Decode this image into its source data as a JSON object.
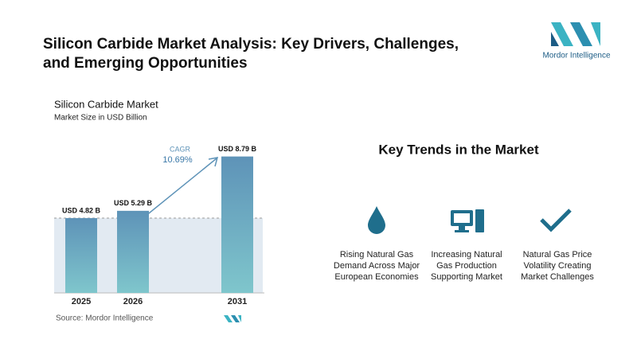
{
  "header": {
    "title_line1": "Silicon Carbide Market Analysis: Key Drivers, Challenges,",
    "title_line2": "and Emerging Opportunities"
  },
  "logo": {
    "text": "Mordor Intelligence"
  },
  "chart_data": {
    "type": "bar",
    "title": "Silicon Carbide Market",
    "subtitle": "Market Size in USD Billion",
    "categories": [
      "2025",
      "2026",
      "2031"
    ],
    "values": [
      4.82,
      5.29,
      8.79
    ],
    "value_labels": [
      "USD 4.82 B",
      "USD 5.29 B",
      "USD 8.79 B"
    ],
    "color": "#5e93b8",
    "annotations": {
      "cagr_label": "CAGR",
      "cagr_value": "10.69%"
    },
    "source": "Source: Mordor Intelligence"
  },
  "trends": {
    "title": "Key Trends in the Market",
    "items": [
      "Rising Natural Gas Demand Across Major European Economies",
      "Increasing Natural Gas Production Supporting Market",
      "Natural Gas Price Volatility Creating Market Challenges"
    ]
  }
}
